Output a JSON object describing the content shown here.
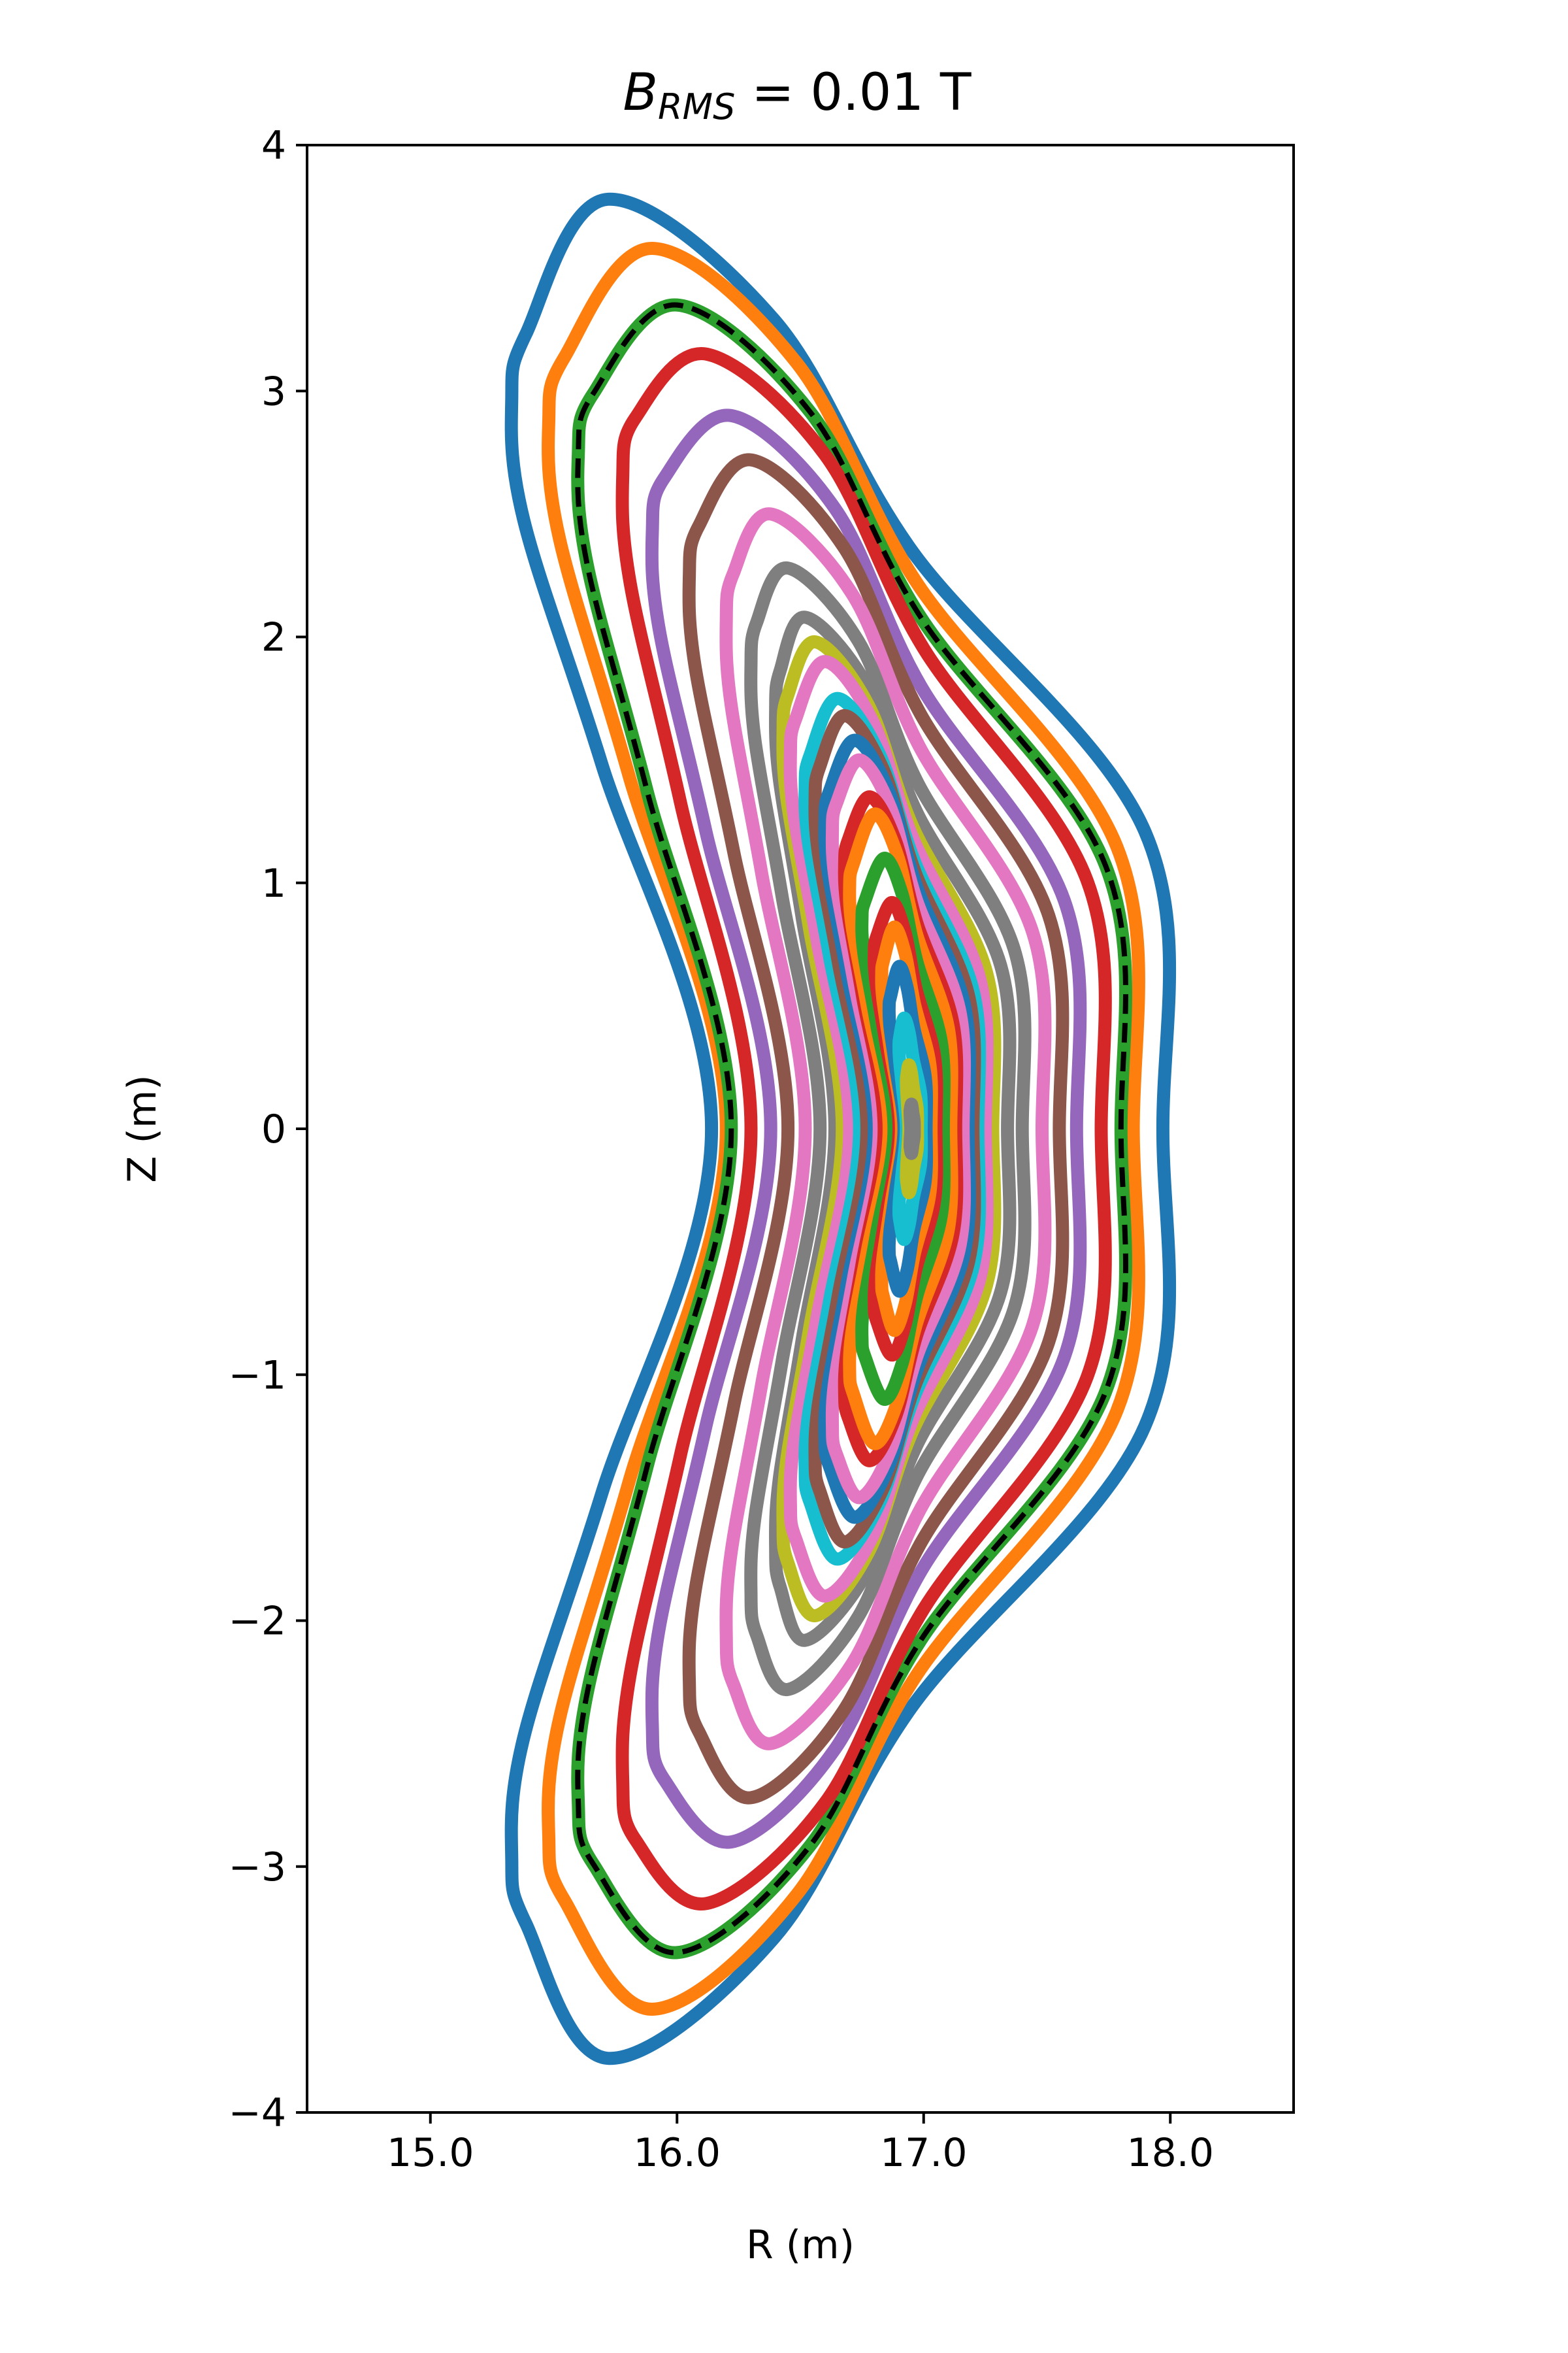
{
  "chart_data": {
    "type": "line",
    "title": {
      "symbol": "B",
      "subscript": "RMS",
      "rest": " = 0.01 T"
    },
    "xlabel": "R (m)",
    "ylabel": "Z (m)",
    "xlim": [
      14.5,
      18.5
    ],
    "ylim": [
      -4,
      4
    ],
    "xticks": [
      15.0,
      16.0,
      17.0,
      18.0
    ],
    "xtick_labels": [
      "15.0",
      "16.0",
      "17.0",
      "18.0"
    ],
    "yticks": [
      -4,
      -3,
      -2,
      -1,
      0,
      1,
      2,
      3,
      4
    ],
    "ytick_labels": [
      "−4",
      "−3",
      "−2",
      "−1",
      "0",
      "1",
      "2",
      "3",
      "4"
    ],
    "grid": false,
    "series": [
      {
        "color": "#1f77b4",
        "r_in": 16.14,
        "r_out": 17.97,
        "z_max": 3.78,
        "r_top": 15.72,
        "r_tip": 15.33,
        "z_tip": 3.3
      },
      {
        "color": "#ff7f0e",
        "r_in": 16.2,
        "r_out": 17.85,
        "z_max": 3.58,
        "r_top": 15.9,
        "r_tip": 15.48,
        "z_tip": 3.2
      },
      {
        "color": "#2ca02c",
        "r_in": 16.22,
        "r_out": 17.8,
        "z_max": 3.35,
        "r_top": 16.0,
        "r_tip": 15.6,
        "z_tip": 3.05
      },
      {
        "color": "#d62728",
        "r_in": 16.3,
        "r_out": 17.72,
        "z_max": 3.15,
        "r_top": 16.12,
        "r_tip": 15.78,
        "z_tip": 2.95
      },
      {
        "color": "#9467bd",
        "r_in": 16.38,
        "r_out": 17.62,
        "z_max": 2.9,
        "r_top": 16.22,
        "r_tip": 15.9,
        "z_tip": 2.7
      },
      {
        "color": "#8c564b",
        "r_in": 16.45,
        "r_out": 17.55,
        "z_max": 2.72,
        "r_top": 16.3,
        "r_tip": 16.05,
        "z_tip": 2.5
      },
      {
        "color": "#e377c2",
        "r_in": 16.52,
        "r_out": 17.48,
        "z_max": 2.5,
        "r_top": 16.38,
        "r_tip": 16.2,
        "z_tip": 2.3
      },
      {
        "color": "#7f7f7f",
        "r_in": 16.58,
        "r_out": 17.4,
        "z_max": 2.28,
        "r_top": 16.45,
        "r_tip": 16.3,
        "z_tip": 2.1
      },
      {
        "color": "#7f7f7f",
        "r_in": 16.64,
        "r_out": 17.34,
        "z_max": 2.08,
        "r_top": 16.52,
        "r_tip": 16.4,
        "z_tip": 1.9
      },
      {
        "color": "#bcbd22",
        "r_in": 16.67,
        "r_out": 17.28,
        "z_max": 1.98,
        "r_top": 16.56,
        "r_tip": 16.43,
        "z_tip": 1.8
      },
      {
        "color": "#e377c2",
        "r_in": 16.7,
        "r_out": 17.25,
        "z_max": 1.9,
        "r_top": 16.6,
        "r_tip": 16.46,
        "z_tip": 1.7
      },
      {
        "color": "#17becf",
        "r_in": 16.74,
        "r_out": 17.22,
        "z_max": 1.75,
        "r_top": 16.65,
        "r_tip": 16.52,
        "z_tip": 1.55
      },
      {
        "color": "#8c564b",
        "r_in": 16.77,
        "r_out": 17.2,
        "z_max": 1.68,
        "r_top": 16.68,
        "r_tip": 16.56,
        "z_tip": 1.5
      },
      {
        "color": "#1f77b4",
        "r_in": 16.8,
        "r_out": 17.18,
        "z_max": 1.58,
        "r_top": 16.72,
        "r_tip": 16.6,
        "z_tip": 1.4
      },
      {
        "color": "#e377c2",
        "r_in": 16.82,
        "r_out": 17.16,
        "z_max": 1.5,
        "r_top": 16.74,
        "r_tip": 16.63,
        "z_tip": 1.35
      },
      {
        "color": "#d62728",
        "r_in": 16.84,
        "r_out": 17.13,
        "z_max": 1.35,
        "r_top": 16.78,
        "r_tip": 16.68,
        "z_tip": 1.2
      },
      {
        "color": "#ff7f0e",
        "r_in": 16.86,
        "r_out": 17.11,
        "z_max": 1.28,
        "r_top": 16.8,
        "r_tip": 16.7,
        "z_tip": 1.1
      },
      {
        "color": "#2ca02c",
        "r_in": 16.88,
        "r_out": 17.08,
        "z_max": 1.1,
        "r_top": 16.84,
        "r_tip": 16.75,
        "z_tip": 0.95
      },
      {
        "color": "#d62728",
        "r_in": 16.9,
        "r_out": 17.05,
        "z_max": 0.92,
        "r_top": 16.87,
        "r_tip": 16.8,
        "z_tip": 0.8
      },
      {
        "color": "#ff7f0e",
        "r_in": 16.91,
        "r_out": 17.03,
        "z_max": 0.82,
        "r_top": 16.88,
        "r_tip": 16.83,
        "z_tip": 0.7
      },
      {
        "color": "#1f77b4",
        "r_in": 16.92,
        "r_out": 17.01,
        "z_max": 0.66,
        "r_top": 16.9,
        "r_tip": 16.86,
        "z_tip": 0.55
      },
      {
        "color": "#17becf",
        "r_in": 16.93,
        "r_out": 16.99,
        "z_max": 0.45,
        "r_top": 16.92,
        "r_tip": 16.9,
        "z_tip": 0.38
      },
      {
        "color": "#bcbd22",
        "r_in": 16.94,
        "r_out": 16.975,
        "z_max": 0.26,
        "r_top": 16.94,
        "r_tip": 16.93,
        "z_tip": 0.22
      },
      {
        "color": "#7f7f7f",
        "r_in": 16.948,
        "r_out": 16.962,
        "z_max": 0.1,
        "r_top": 16.95,
        "r_tip": 16.945,
        "z_tip": 0.08
      }
    ],
    "reference_curve": {
      "color": "#000000",
      "style": "dashed",
      "r_in": 16.22,
      "r_out": 17.8,
      "z_max": 3.35,
      "r_top": 16.0,
      "r_tip": 15.6,
      "z_tip": 3.05
    }
  }
}
